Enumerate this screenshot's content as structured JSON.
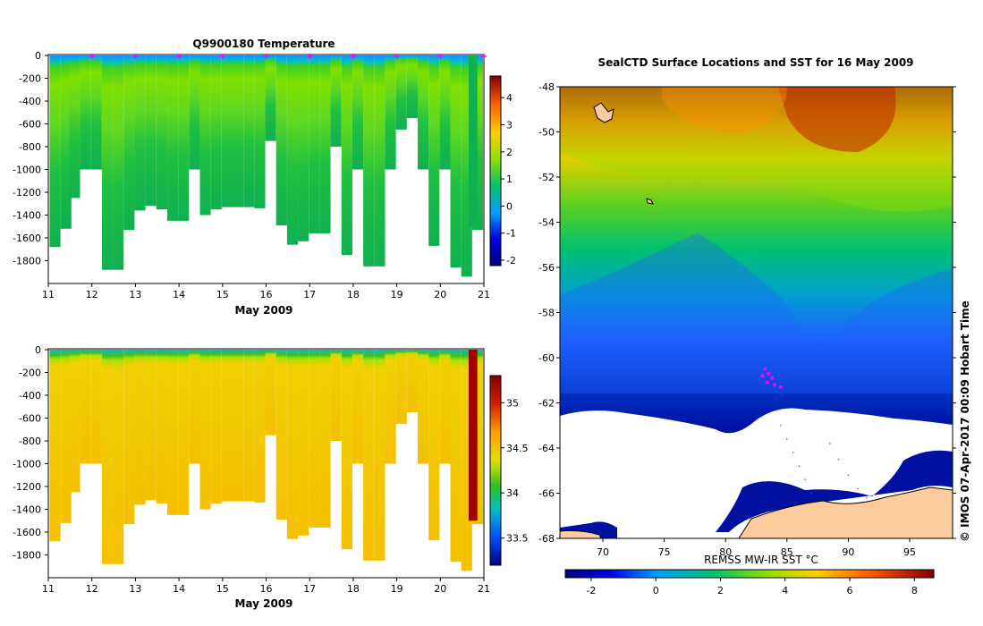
{
  "chart_data": [
    {
      "type": "heatmap",
      "title": "Q9900180  Temperature",
      "xlabel": "May 2009",
      "ylabel": "",
      "x_ticks": [
        "11",
        "12",
        "13",
        "14",
        "15",
        "16",
        "17",
        "18",
        "19",
        "20",
        "21"
      ],
      "y_ticks": [
        "0",
        "-200",
        "-400",
        "-600",
        "-800",
        "-1000",
        "-1200",
        "-1400",
        "-1600",
        "-1800"
      ],
      "xlim": [
        11,
        21
      ],
      "ylim": [
        -2000,
        0
      ],
      "colorbar_ticks": [
        "4",
        "3",
        "2",
        "1",
        "0",
        "-1",
        "-2"
      ],
      "colorbar_range": [
        -2.2,
        4.8
      ],
      "profile_days": [
        11.15,
        11.4,
        11.6,
        11.85,
        12.1,
        12.35,
        12.6,
        12.85,
        13.1,
        13.35,
        13.6,
        13.85,
        14.1,
        14.35,
        14.6,
        14.85,
        15.1,
        15.35,
        15.6,
        15.85,
        16.1,
        16.35,
        16.6,
        16.85,
        17.1,
        17.35,
        17.6,
        17.85,
        18.1,
        18.35,
        18.6,
        18.85,
        19.1,
        19.35,
        19.6,
        19.85,
        20.1,
        20.35,
        20.6,
        20.85
      ],
      "profile_max_depth": [
        -1680,
        -1520,
        -1250,
        -1000,
        -1000,
        -1880,
        -1880,
        -1530,
        -1360,
        -1320,
        -1350,
        -1450,
        -1450,
        -1000,
        -1400,
        -1350,
        -1330,
        -1330,
        -1330,
        -1340,
        -750,
        -1490,
        -1660,
        -1630,
        -1560,
        -1560,
        -800,
        -1750,
        -1000,
        -1850,
        -1850,
        -1000,
        -650,
        -550,
        -1000,
        -1670,
        -1000,
        -1860,
        -1940,
        -1530
      ],
      "surface_markers_days": [
        12.0,
        13.0,
        14.0,
        15.0,
        16.0,
        17.0,
        18.0,
        19.0,
        20.0,
        21.0
      ]
    },
    {
      "type": "heatmap",
      "title": "",
      "xlabel": "May 2009",
      "ylabel": "",
      "x_ticks": [
        "11",
        "12",
        "13",
        "14",
        "15",
        "16",
        "17",
        "18",
        "19",
        "20",
        "21"
      ],
      "y_ticks": [
        "0",
        "-200",
        "-400",
        "-600",
        "-800",
        "-1000",
        "-1200",
        "-1400",
        "-1600",
        "-1800"
      ],
      "xlim": [
        11,
        21
      ],
      "ylim": [
        -2000,
        0
      ],
      "colorbar_ticks": [
        "35",
        "34.5",
        "34",
        "33.5"
      ],
      "colorbar_range": [
        33.2,
        35.3
      ],
      "profile_days": [
        11.15,
        11.4,
        11.6,
        11.85,
        12.1,
        12.35,
        12.6,
        12.85,
        13.1,
        13.35,
        13.6,
        13.85,
        14.1,
        14.35,
        14.6,
        14.85,
        15.1,
        15.35,
        15.6,
        15.85,
        16.1,
        16.35,
        16.6,
        16.85,
        17.1,
        17.35,
        17.6,
        17.85,
        18.1,
        18.35,
        18.6,
        18.85,
        19.1,
        19.35,
        19.6,
        19.85,
        20.1,
        20.35,
        20.6,
        20.85
      ],
      "profile_max_depth": [
        -1680,
        -1520,
        -1250,
        -1000,
        -1000,
        -1880,
        -1880,
        -1530,
        -1360,
        -1320,
        -1350,
        -1450,
        -1450,
        -1000,
        -1400,
        -1350,
        -1330,
        -1330,
        -1330,
        -1340,
        -750,
        -1490,
        -1660,
        -1630,
        -1560,
        -1560,
        -800,
        -1750,
        -1000,
        -1850,
        -1850,
        -1000,
        -650,
        -550,
        -1000,
        -1670,
        -1000,
        -1860,
        -1940,
        -1530
      ]
    },
    {
      "type": "heatmap",
      "title": "SealCTD Surface Locations and SST for 16 May 2009",
      "xlabel": "REMSS MW-IR SST °C",
      "x_ticks": [
        "70",
        "75",
        "80",
        "85",
        "90",
        "95"
      ],
      "y_ticks": [
        "-48",
        "-50",
        "-52",
        "-54",
        "-56",
        "-58",
        "-60",
        "-62",
        "-64",
        "-66",
        "-68"
      ],
      "xlim": [
        66.5,
        98.5
      ],
      "ylim": [
        -68,
        -48
      ],
      "colorbar_ticks": [
        "-2",
        "0",
        "2",
        "4",
        "6",
        "8"
      ],
      "colorbar_range": [
        -2.8,
        8.6
      ],
      "seal_locations": [
        [
          83.2,
          -60.5
        ],
        [
          83.5,
          -60.7
        ],
        [
          83.8,
          -60.9
        ],
        [
          83.4,
          -61.1
        ],
        [
          84.0,
          -61.2
        ],
        [
          84.5,
          -61.3
        ],
        [
          83.0,
          -60.8
        ]
      ],
      "ship_track_points": [
        [
          84.5,
          -63.0
        ],
        [
          85.0,
          -63.6
        ],
        [
          85.5,
          -64.2
        ],
        [
          86.0,
          -64.8
        ],
        [
          86.5,
          -65.4
        ],
        [
          87.0,
          -66.0
        ],
        [
          88.5,
          -63.8
        ],
        [
          89.2,
          -64.5
        ],
        [
          90.0,
          -65.2
        ],
        [
          90.8,
          -65.8
        ],
        [
          91.5,
          -66.2
        ]
      ]
    }
  ],
  "credit": "© IMOS 07-Apr-2017 00:09 Hobart Time",
  "colors": {
    "sst_ramp": [
      "#000080",
      "#0000c8",
      "#0050ff",
      "#00a0ff",
      "#00d0c0",
      "#00c070",
      "#30c020",
      "#90e000",
      "#e0e000",
      "#ffb000",
      "#ff6000",
      "#d02000",
      "#800000"
    ],
    "salinity_fill": "#f5c000",
    "land": "#fccc9c",
    "ice": "#ffffff",
    "seal_marker": "#ff00ff"
  }
}
